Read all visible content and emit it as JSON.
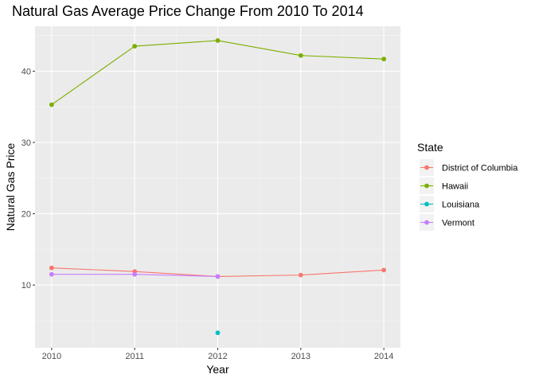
{
  "chart_data": {
    "type": "line",
    "title": "Natural Gas Average Price Change From 2010 To 2014",
    "xlabel": "Year",
    "ylabel": "Natural Gas Price",
    "x": [
      2010,
      2011,
      2012,
      2013,
      2014
    ],
    "xlim": [
      2009.8,
      2014.2
    ],
    "ylim": [
      1.2,
      46.3
    ],
    "yticks": [
      10,
      20,
      30,
      40
    ],
    "grid": true,
    "legend": {
      "title": "State",
      "placement": "right"
    },
    "series": [
      {
        "name": "District of Columbia",
        "color": "#F8766D",
        "points": [
          [
            2010,
            12.4
          ],
          [
            2011,
            11.9
          ],
          [
            2012,
            11.2
          ],
          [
            2013,
            11.4
          ],
          [
            2014,
            12.1
          ]
        ]
      },
      {
        "name": "Hawaii",
        "color": "#7CAE00",
        "points": [
          [
            2010,
            35.3
          ],
          [
            2011,
            43.5
          ],
          [
            2012,
            44.3
          ],
          [
            2013,
            42.2
          ],
          [
            2014,
            41.7
          ]
        ]
      },
      {
        "name": "Louisiana",
        "color": "#00BFC4",
        "points": [
          [
            2012,
            3.3
          ]
        ]
      },
      {
        "name": "Vermont",
        "color": "#C77CFF",
        "points": [
          [
            2010,
            11.5
          ],
          [
            2011,
            11.5
          ],
          [
            2012,
            11.2
          ]
        ]
      }
    ]
  }
}
